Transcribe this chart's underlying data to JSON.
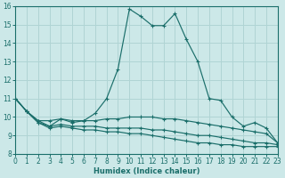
{
  "xlabel": "Humidex (Indice chaleur)",
  "xlim": [
    0,
    23
  ],
  "ylim": [
    8,
    16
  ],
  "yticks": [
    8,
    9,
    10,
    11,
    12,
    13,
    14,
    15,
    16
  ],
  "xticks": [
    0,
    1,
    2,
    3,
    4,
    5,
    6,
    7,
    8,
    9,
    10,
    11,
    12,
    13,
    14,
    15,
    16,
    17,
    18,
    19,
    20,
    21,
    22,
    23
  ],
  "bg_color": "#cce8e8",
  "grid_color": "#b0d4d4",
  "line_color": "#1a6e6a",
  "lines": [
    [
      11.0,
      10.3,
      9.8,
      9.5,
      9.9,
      9.7,
      9.8,
      10.2,
      11.0,
      12.6,
      15.85,
      15.45,
      14.95,
      14.95,
      15.6,
      14.2,
      13.0,
      11.0,
      10.9,
      10.0,
      9.5,
      9.7,
      9.4,
      8.6
    ],
    [
      11.0,
      10.3,
      9.8,
      9.8,
      9.9,
      9.8,
      9.8,
      9.8,
      9.9,
      9.9,
      10.0,
      10.0,
      10.0,
      9.9,
      9.9,
      9.8,
      9.7,
      9.6,
      9.5,
      9.4,
      9.3,
      9.2,
      9.1,
      8.6
    ],
    [
      11.0,
      10.3,
      9.7,
      9.5,
      9.6,
      9.5,
      9.5,
      9.5,
      9.4,
      9.4,
      9.4,
      9.4,
      9.3,
      9.3,
      9.2,
      9.1,
      9.0,
      9.0,
      8.9,
      8.8,
      8.7,
      8.6,
      8.6,
      8.5
    ],
    [
      11.0,
      10.3,
      9.7,
      9.4,
      9.5,
      9.4,
      9.3,
      9.3,
      9.2,
      9.2,
      9.1,
      9.1,
      9.0,
      8.9,
      8.8,
      8.7,
      8.6,
      8.6,
      8.5,
      8.5,
      8.4,
      8.4,
      8.4,
      8.4
    ]
  ]
}
